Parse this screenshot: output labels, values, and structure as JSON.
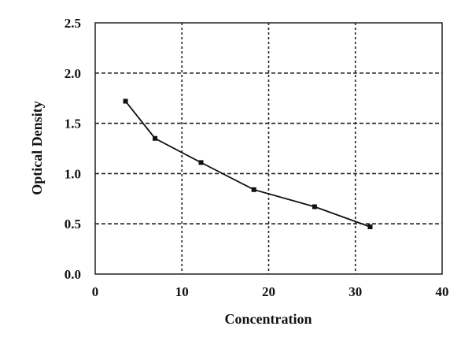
{
  "chart_data": {
    "type": "line",
    "title": "",
    "xlabel": "Concentration",
    "ylabel": "Optical Density",
    "xlim": [
      0,
      40
    ],
    "ylim": [
      0,
      2.5
    ],
    "xticks": [
      "0",
      "10",
      "20",
      "30",
      "40"
    ],
    "yticks": [
      "0.0",
      "0.5",
      "1.0",
      "1.5",
      "2.0",
      "2.5"
    ],
    "grid": true,
    "grid_style": "dashed",
    "line_color": "#111111",
    "marker": "square",
    "x": [
      3.5,
      6.9,
      12.2,
      18.3,
      25.3,
      31.7
    ],
    "y": [
      1.72,
      1.35,
      1.11,
      0.84,
      0.67,
      0.47
    ]
  }
}
